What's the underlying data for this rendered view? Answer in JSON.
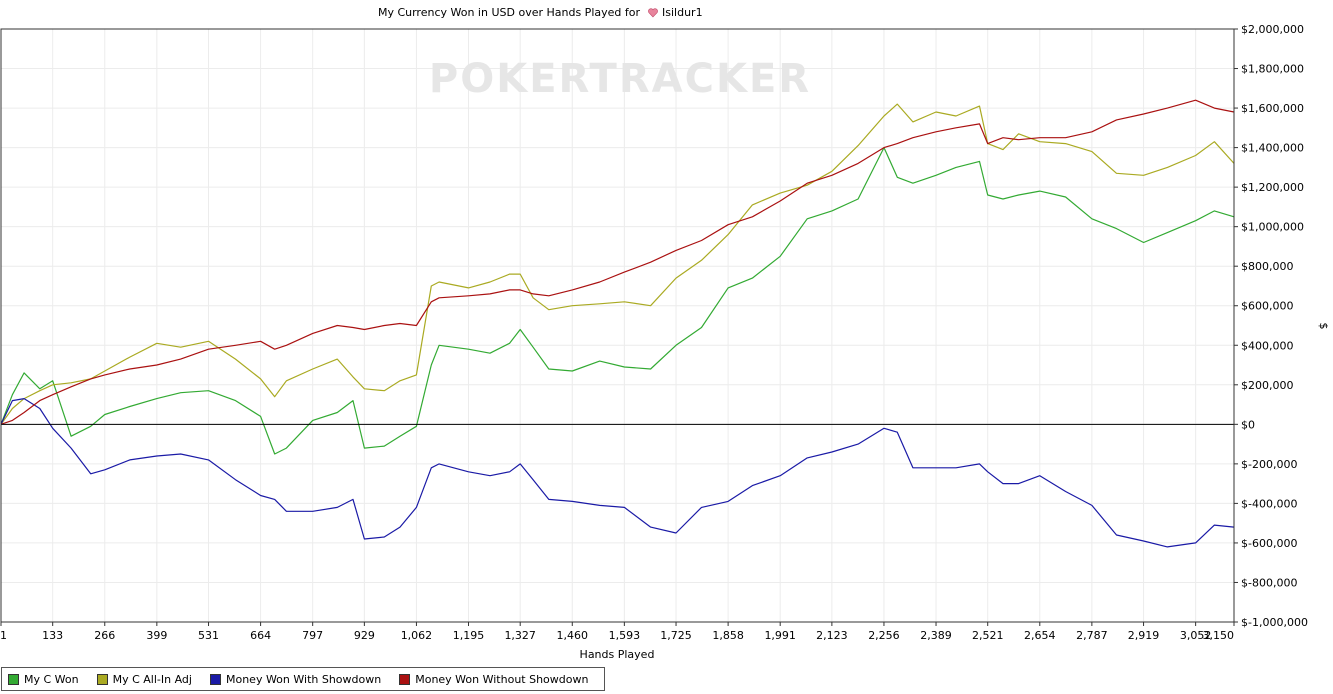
{
  "chart_data": {
    "type": "line",
    "title": "My Currency Won in USD over Hands Played for",
    "player": "Isildur1",
    "watermark": "POKERTRACKER",
    "xlabel": "Hands Played",
    "ylabel": "$",
    "xlim": [
      1,
      3150
    ],
    "ylim": [
      -1000000,
      2000000
    ],
    "grid": true,
    "legend_position": "bottom-left",
    "x_ticks": [
      "1",
      "133",
      "266",
      "399",
      "531",
      "664",
      "797",
      "929",
      "1,062",
      "1,195",
      "1,327",
      "1,460",
      "1,593",
      "1,725",
      "1,858",
      "1,991",
      "2,123",
      "2,256",
      "2,389",
      "2,521",
      "2,654",
      "2,787",
      "2,919",
      "3,052",
      "3,150"
    ],
    "y_ticks": [
      "$2,000,000",
      "$1,800,000",
      "$1,600,000",
      "$1,400,000",
      "$1,200,000",
      "$1,000,000",
      "$800,000",
      "$600,000",
      "$400,000",
      "$200,000",
      "$0",
      "$-200,000",
      "$-400,000",
      "$-600,000",
      "$-800,000",
      "$-1,000,000"
    ],
    "x": [
      1,
      30,
      60,
      100,
      133,
      180,
      230,
      266,
      330,
      399,
      460,
      531,
      600,
      664,
      700,
      730,
      797,
      860,
      900,
      929,
      980,
      1020,
      1062,
      1100,
      1120,
      1195,
      1250,
      1300,
      1327,
      1360,
      1400,
      1460,
      1530,
      1593,
      1660,
      1725,
      1790,
      1858,
      1920,
      1991,
      2060,
      2123,
      2190,
      2256,
      2290,
      2330,
      2389,
      2440,
      2500,
      2521,
      2560,
      2600,
      2654,
      2720,
      2787,
      2850,
      2919,
      2980,
      3052,
      3100,
      3150
    ],
    "series": [
      {
        "name": "My C Won",
        "color": "#33aa33",
        "values": [
          0,
          150000,
          260000,
          180000,
          220000,
          -60000,
          -10000,
          50000,
          90000,
          130000,
          160000,
          170000,
          120000,
          40000,
          -150000,
          -120000,
          20000,
          60000,
          120000,
          -120000,
          -110000,
          -60000,
          -10000,
          300000,
          400000,
          380000,
          360000,
          410000,
          480000,
          390000,
          280000,
          270000,
          320000,
          290000,
          280000,
          400000,
          490000,
          690000,
          740000,
          850000,
          1040000,
          1080000,
          1140000,
          1400000,
          1250000,
          1220000,
          1260000,
          1300000,
          1330000,
          1160000,
          1140000,
          1160000,
          1180000,
          1150000,
          1040000,
          990000,
          920000,
          970000,
          1030000,
          1080000,
          1050000
        ]
      },
      {
        "name": "My C All-In Adj",
        "color": "#aaaa22",
        "values": [
          0,
          80000,
          130000,
          170000,
          200000,
          210000,
          230000,
          270000,
          340000,
          410000,
          390000,
          420000,
          330000,
          230000,
          140000,
          220000,
          280000,
          330000,
          240000,
          180000,
          170000,
          220000,
          250000,
          700000,
          720000,
          690000,
          720000,
          760000,
          760000,
          640000,
          580000,
          600000,
          610000,
          620000,
          600000,
          740000,
          830000,
          960000,
          1110000,
          1170000,
          1210000,
          1280000,
          1410000,
          1560000,
          1620000,
          1530000,
          1580000,
          1560000,
          1610000,
          1420000,
          1390000,
          1470000,
          1430000,
          1420000,
          1380000,
          1270000,
          1260000,
          1300000,
          1360000,
          1430000,
          1320000
        ]
      },
      {
        "name": "Money Won With Showdown",
        "color": "#1a1aa6",
        "values": [
          0,
          120000,
          130000,
          80000,
          -20000,
          -120000,
          -250000,
          -230000,
          -180000,
          -160000,
          -150000,
          -180000,
          -280000,
          -360000,
          -380000,
          -440000,
          -440000,
          -420000,
          -380000,
          -580000,
          -570000,
          -520000,
          -420000,
          -220000,
          -200000,
          -240000,
          -260000,
          -240000,
          -200000,
          -280000,
          -380000,
          -390000,
          -410000,
          -420000,
          -520000,
          -550000,
          -420000,
          -390000,
          -310000,
          -260000,
          -170000,
          -140000,
          -100000,
          -20000,
          -40000,
          -220000,
          -220000,
          -220000,
          -200000,
          -240000,
          -300000,
          -300000,
          -260000,
          -340000,
          -410000,
          -560000,
          -590000,
          -620000,
          -600000,
          -510000,
          -520000
        ]
      },
      {
        "name": "Money Won Without Showdown",
        "color": "#aa1111",
        "values": [
          0,
          20000,
          60000,
          120000,
          150000,
          190000,
          230000,
          250000,
          280000,
          300000,
          330000,
          380000,
          400000,
          420000,
          380000,
          400000,
          460000,
          500000,
          490000,
          480000,
          500000,
          510000,
          500000,
          620000,
          640000,
          650000,
          660000,
          680000,
          680000,
          660000,
          650000,
          680000,
          720000,
          770000,
          820000,
          880000,
          930000,
          1010000,
          1050000,
          1130000,
          1220000,
          1260000,
          1320000,
          1400000,
          1420000,
          1450000,
          1480000,
          1500000,
          1520000,
          1420000,
          1450000,
          1440000,
          1450000,
          1450000,
          1480000,
          1540000,
          1570000,
          1600000,
          1640000,
          1600000,
          1580000
        ]
      }
    ]
  }
}
